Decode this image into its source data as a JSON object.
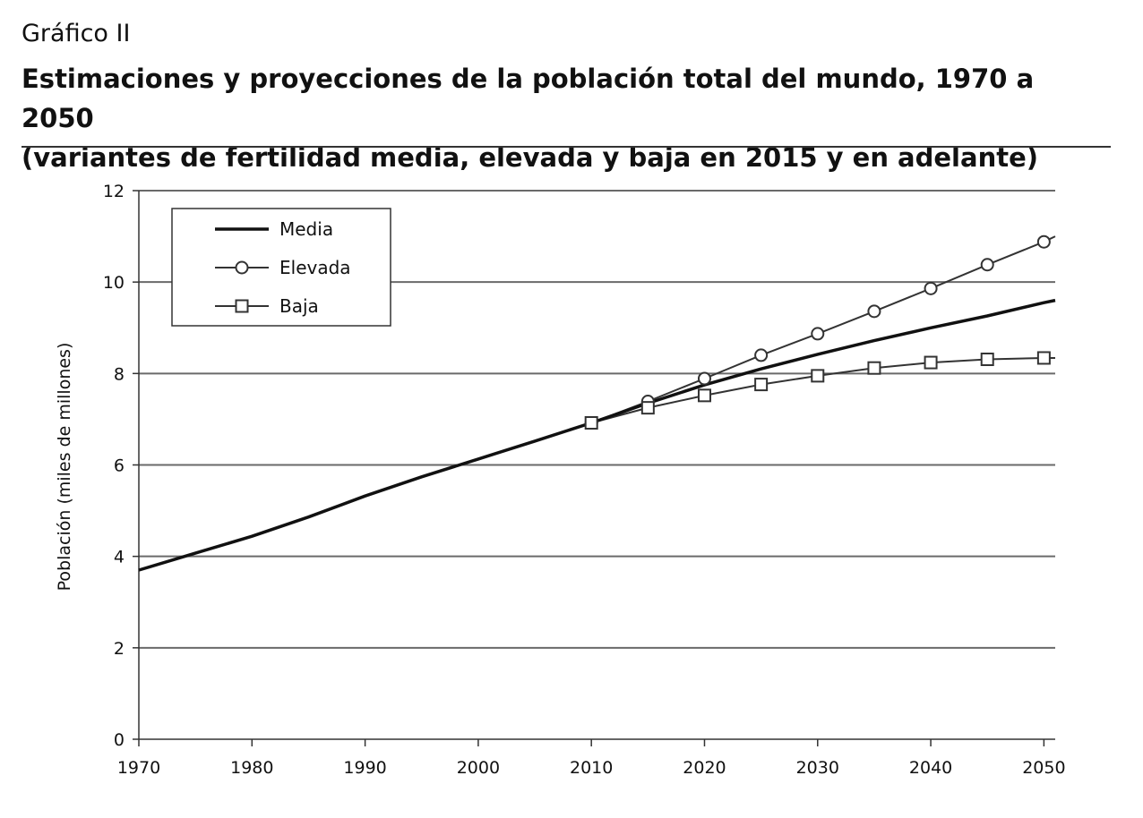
{
  "header": {
    "label": "Gráfico II",
    "title_line1": "Estimaciones y proyecciones de la población total del mundo, 1970 a 2050",
    "title_line2": "(variantes de fertilidad media, elevada y baja en 2015 y en adelante)"
  },
  "chart_data": {
    "type": "line",
    "ylabel": "Población (miles de millones)",
    "xlabel": "",
    "xlim": [
      1970,
      2051
    ],
    "ylim": [
      0,
      12
    ],
    "xticks": [
      1970,
      1980,
      1990,
      2000,
      2010,
      2020,
      2030,
      2040,
      2050
    ],
    "yticks": [
      0,
      2,
      4,
      6,
      8,
      10,
      12
    ],
    "grid": "horizontal",
    "legend_position": "top-left",
    "series": [
      {
        "name": "Media",
        "marker": "none",
        "x": [
          1970,
          1975,
          1980,
          1985,
          1990,
          1995,
          2000,
          2005,
          2010,
          2015,
          2020,
          2025,
          2030,
          2035,
          2040,
          2045,
          2050,
          2051
        ],
        "values": [
          3.7,
          4.07,
          4.44,
          4.86,
          5.32,
          5.74,
          6.13,
          6.52,
          6.92,
          7.35,
          7.75,
          8.1,
          8.42,
          8.72,
          9.0,
          9.26,
          9.55,
          9.6
        ]
      },
      {
        "name": "Elevada",
        "marker": "circle",
        "x": [
          2010,
          2015,
          2020,
          2025,
          2030,
          2035,
          2040,
          2045,
          2050,
          2051
        ],
        "values": [
          6.92,
          7.39,
          7.89,
          8.4,
          8.87,
          9.36,
          9.86,
          10.38,
          10.88,
          11.0
        ]
      },
      {
        "name": "Baja",
        "marker": "square",
        "x": [
          2010,
          2015,
          2020,
          2025,
          2030,
          2035,
          2040,
          2045,
          2050,
          2051
        ],
        "values": [
          6.92,
          7.25,
          7.52,
          7.76,
          7.95,
          8.12,
          8.24,
          8.31,
          8.34,
          8.34
        ]
      }
    ]
  }
}
